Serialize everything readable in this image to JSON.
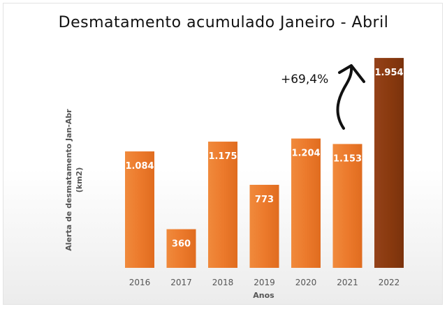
{
  "chart_data": {
    "type": "bar",
    "title": "Desmatamento acumulado Janeiro - Abril",
    "xlabel": "Anos",
    "ylabel_line1": "Alerta de desmatamento Jan-Abr",
    "ylabel_line2": "(km2)",
    "categories": [
      "2016",
      "2017",
      "2018",
      "2019",
      "2020",
      "2021",
      "2022"
    ],
    "values": [
      1084,
      360,
      1175,
      773,
      1204,
      1153,
      1954
    ],
    "value_labels": [
      "1.084",
      "360",
      "1.175",
      "773",
      "1.204",
      "1.153",
      "1.954"
    ],
    "ylim": [
      0,
      2000
    ],
    "annotation": "+69,4%",
    "colors": {
      "bar": "#ec7a2c",
      "highlight_bar": "#8a3a0f",
      "highlight_index": 6
    }
  }
}
